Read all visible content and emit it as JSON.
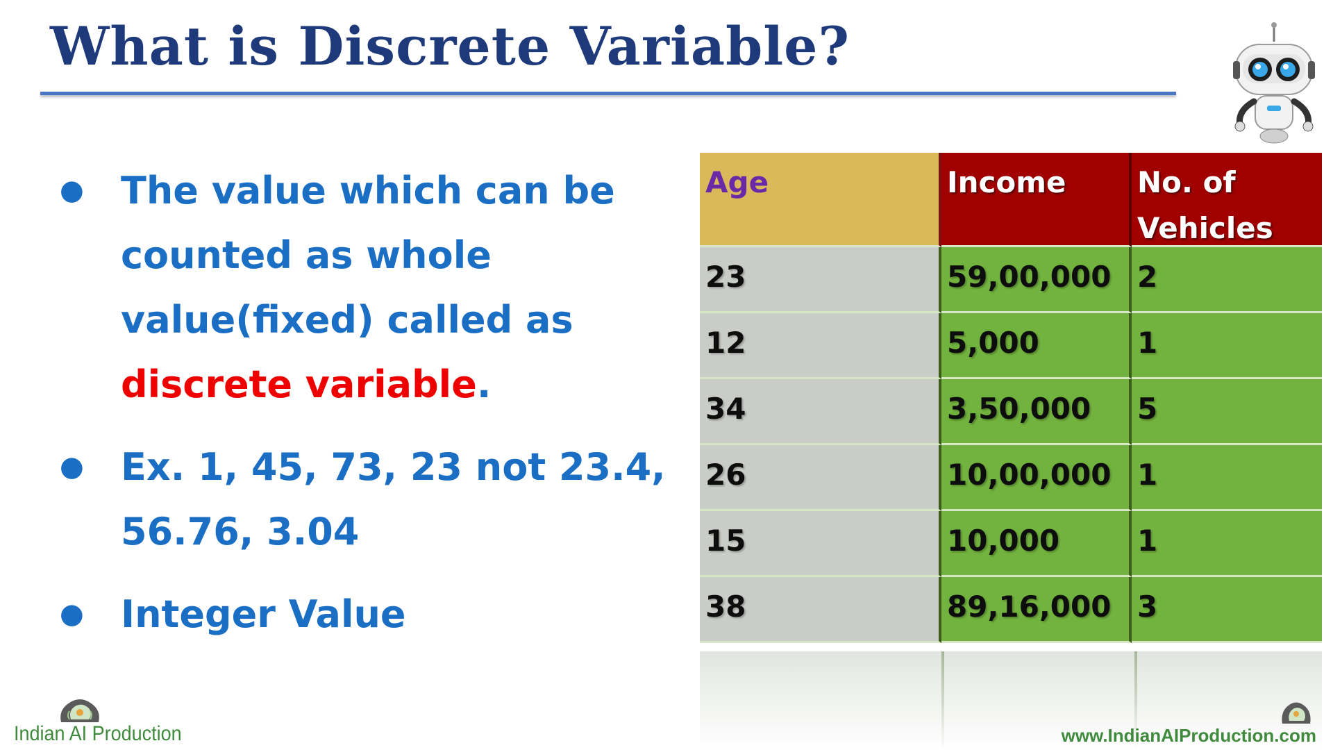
{
  "slide": {
    "title": "What is Discrete Variable?",
    "bullets": [
      {
        "text": "The value which can be counted as whole value(fixed) called as ",
        "highlight": "discrete variable",
        "tail": "."
      },
      {
        "text": "Ex. 1, 45, 73, 23 not 23.4, 56.76, 3.04"
      },
      {
        "text": "Integer Value"
      }
    ]
  },
  "table": {
    "headers": [
      "Age",
      "Income",
      "No. of Vehicles"
    ],
    "rows": [
      [
        "23",
        "59,00,000",
        "2"
      ],
      [
        "12",
        "5,000",
        "1"
      ],
      [
        "34",
        "3,50,000",
        "5"
      ],
      [
        "26",
        "10,00,000",
        "1"
      ],
      [
        "15",
        "10,000",
        "1"
      ],
      [
        "38",
        "89,16,000",
        "3"
      ]
    ]
  },
  "branding": {
    "logo_text": "Indian AI Production",
    "url": "www.IndianAIProduction.com"
  },
  "colors": {
    "title": "#1f3a7a",
    "bullet_text": "#1a6fc4",
    "highlight": "#ee0000",
    "header_age": "#dbb85a",
    "header_other": "#a00000",
    "age_column": "#c9ccc7",
    "data_cells": "#72b23e",
    "brand_green": "#3f8a3c"
  },
  "icons": [
    "robot-icon",
    "brain-logo-icon"
  ]
}
